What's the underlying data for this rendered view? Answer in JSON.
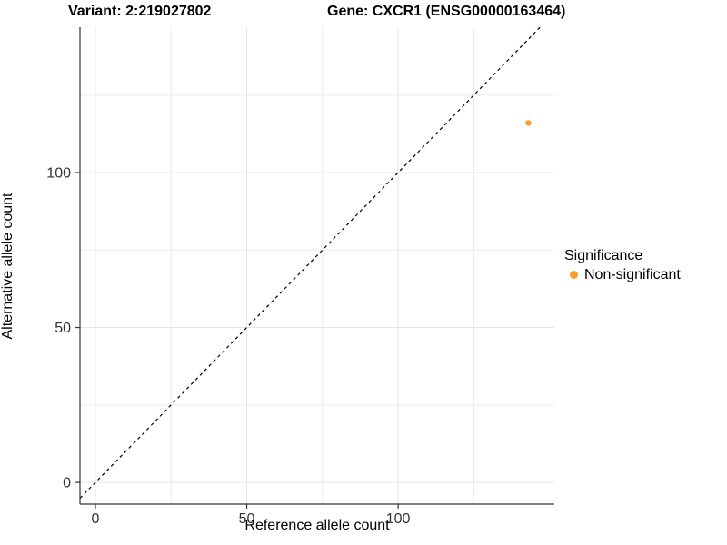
{
  "titles": {
    "variant": "Variant: 2:219027802",
    "gene": "Gene: CXCR1 (ENSG00000163464)"
  },
  "axes": {
    "x_label": "Reference allele count",
    "y_label": "Alternative allele count"
  },
  "legend": {
    "title": "Significance",
    "items": [
      {
        "label": "Non-significant",
        "color": "#FAA02A"
      }
    ]
  },
  "chart_data": {
    "type": "scatter",
    "title": "Variant: 2:219027802 | Gene: CXCR1 (ENSG00000163464)",
    "xlabel": "Reference allele count",
    "ylabel": "Alternative allele count",
    "xlim": [
      -5.1,
      151.6
    ],
    "ylim": [
      -7.0,
      146.9
    ],
    "x_ticks": [
      0,
      50,
      100
    ],
    "y_ticks": [
      0,
      50,
      100
    ],
    "x_minor_ticks": [
      25,
      75,
      125
    ],
    "y_minor_ticks": [
      25,
      75,
      125
    ],
    "grid": true,
    "legend_position": "right",
    "legend_title": "Significance",
    "series": [
      {
        "name": "Non-significant",
        "color": "#FAA02A",
        "points": [
          {
            "x": 143,
            "y": 116
          }
        ]
      }
    ],
    "reference_line": {
      "equation": "y = x",
      "style": "dashed",
      "color": "#000000"
    }
  },
  "colors": {
    "point": "#FAA02A",
    "grid_major": "#E5E5E5",
    "grid_minor": "#EBEBEB",
    "axis_line": "#333333",
    "tick_label": "#333333",
    "diagonal": "#000000"
  }
}
